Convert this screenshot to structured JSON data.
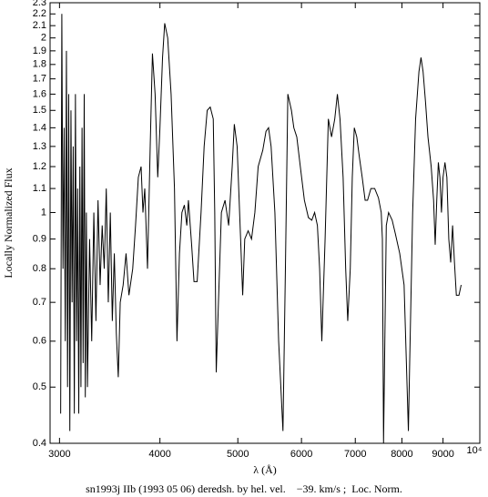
{
  "chart_data": {
    "type": "line",
    "xlabel": "λ (Å)",
    "ylabel": "Locally Normalized Flux",
    "caption": "sn1993j IIb (1993 05 06) deredsh. by hel. vel.    −39. km/s ;  Loc. Norm.",
    "xlog": true,
    "ylog": true,
    "color": "#000000",
    "xlim": [
      2920,
      10000
    ],
    "ylim": [
      0.4,
      2.3
    ],
    "xticks": [
      3000,
      4000,
      5000,
      6000,
      7000,
      8000,
      9000,
      {
        "value": 10000,
        "label": "10⁴"
      }
    ],
    "yticks": [
      0.4,
      0.5,
      0.6,
      0.7,
      0.8,
      0.9,
      1,
      1.1,
      1.2,
      1.3,
      1.4,
      1.5,
      1.6,
      1.7,
      1.8,
      1.9,
      2,
      2.1,
      2.2,
      2.3
    ],
    "x": [
      3010,
      3020,
      3030,
      3040,
      3050,
      3060,
      3070,
      3080,
      3090,
      3100,
      3110,
      3120,
      3130,
      3140,
      3150,
      3160,
      3170,
      3180,
      3190,
      3200,
      3210,
      3220,
      3230,
      3240,
      3250,
      3270,
      3290,
      3310,
      3330,
      3350,
      3370,
      3390,
      3410,
      3430,
      3450,
      3470,
      3490,
      3510,
      3530,
      3550,
      3570,
      3600,
      3630,
      3660,
      3700,
      3730,
      3760,
      3790,
      3810,
      3830,
      3860,
      3890,
      3915,
      3945,
      3975,
      4000,
      4030,
      4055,
      4090,
      4130,
      4170,
      4200,
      4230,
      4260,
      4290,
      4320,
      4340,
      4380,
      4410,
      4450,
      4500,
      4540,
      4580,
      4620,
      4660,
      4680,
      4700,
      4730,
      4770,
      4820,
      4870,
      4920,
      4950,
      4990,
      5040,
      5070,
      5100,
      5150,
      5200,
      5250,
      5300,
      5370,
      5420,
      5460,
      5500,
      5560,
      5620,
      5690,
      5730,
      5770,
      5830,
      5870,
      5920,
      5980,
      6050,
      6120,
      6180,
      6230,
      6280,
      6320,
      6360,
      6420,
      6480,
      6540,
      6600,
      6650,
      6700,
      6760,
      6810,
      6850,
      6900,
      6940,
      6980,
      7030,
      7080,
      7140,
      7200,
      7250,
      7320,
      7400,
      7480,
      7540,
      7565,
      7590,
      7650,
      7700,
      7780,
      7850,
      7950,
      8050,
      8120,
      8150,
      8180,
      8250,
      8320,
      8400,
      8450,
      8500,
      8560,
      8620,
      8700,
      8760,
      8800,
      8840,
      8880,
      8920,
      8960,
      9000,
      9050,
      9100,
      9150,
      9200,
      9250,
      9300,
      9350,
      9420,
      9480
    ],
    "values": [
      0.45,
      2.2,
      0.8,
      1.4,
      0.6,
      1.9,
      0.5,
      1.6,
      0.42,
      1.5,
      0.7,
      1.3,
      0.45,
      1.6,
      0.6,
      1.1,
      0.45,
      1.2,
      0.5,
      1.4,
      0.55,
      1.6,
      0.48,
      1.0,
      0.5,
      0.9,
      0.6,
      1.0,
      0.65,
      1.05,
      0.75,
      0.95,
      0.8,
      1.1,
      0.7,
      1.0,
      0.65,
      0.85,
      0.62,
      0.52,
      0.7,
      0.75,
      0.85,
      0.72,
      0.8,
      0.95,
      1.15,
      1.2,
      1.0,
      1.1,
      0.8,
      1.3,
      1.88,
      1.6,
      1.15,
      1.4,
      1.85,
      2.12,
      2.0,
      1.6,
      1.1,
      0.6,
      0.85,
      1.0,
      1.03,
      0.95,
      1.05,
      0.88,
      0.76,
      0.76,
      1.0,
      1.3,
      1.5,
      1.52,
      1.45,
      1.0,
      0.53,
      0.7,
      1.0,
      1.05,
      0.95,
      1.2,
      1.42,
      1.3,
      0.9,
      0.72,
      0.9,
      0.93,
      0.9,
      1.0,
      1.2,
      1.28,
      1.38,
      1.4,
      1.3,
      1.0,
      0.6,
      0.42,
      0.8,
      1.6,
      1.5,
      1.4,
      1.35,
      1.2,
      1.05,
      0.98,
      0.97,
      1.0,
      0.95,
      0.8,
      0.6,
      0.9,
      1.45,
      1.35,
      1.45,
      1.6,
      1.45,
      1.15,
      0.8,
      0.65,
      0.8,
      1.15,
      1.4,
      1.35,
      1.25,
      1.15,
      1.05,
      1.05,
      1.1,
      1.1,
      1.06,
      1.0,
      0.9,
      0.4,
      0.95,
      1.0,
      0.97,
      0.92,
      0.85,
      0.75,
      0.5,
      0.42,
      0.55,
      1.0,
      1.45,
      1.75,
      1.85,
      1.75,
      1.55,
      1.35,
      1.2,
      1.05,
      0.88,
      1.05,
      1.22,
      1.15,
      1.0,
      1.15,
      1.22,
      1.15,
      0.9,
      0.82,
      0.95,
      0.82,
      0.72,
      0.72,
      0.75
    ]
  }
}
